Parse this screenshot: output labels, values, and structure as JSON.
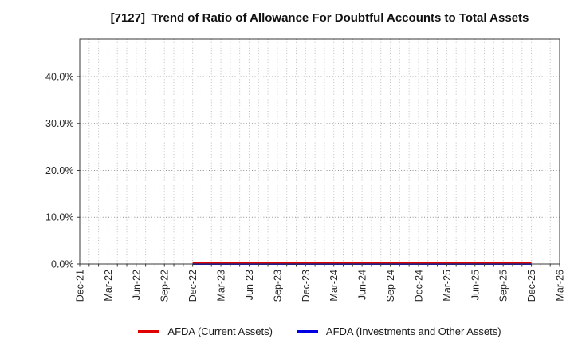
{
  "chart_data": {
    "type": "line",
    "title": "[7127]  Trend of Ratio of Allowance For Doubtful Accounts to Total Assets",
    "xlabel": "",
    "ylabel": "",
    "y_unit": "%",
    "ylim": [
      0,
      48
    ],
    "x_range_months": [
      0,
      51
    ],
    "grid": {
      "style": "dotted",
      "vertical_every_months": 1,
      "horizontal_every_pct": 10
    },
    "legend_position": "bottom-center",
    "x_ticks": [
      {
        "month": 0,
        "label": "Dec-21"
      },
      {
        "month": 3,
        "label": "Mar-22"
      },
      {
        "month": 6,
        "label": "Jun-22"
      },
      {
        "month": 9,
        "label": "Sep-22"
      },
      {
        "month": 12,
        "label": "Dec-22"
      },
      {
        "month": 15,
        "label": "Mar-23"
      },
      {
        "month": 18,
        "label": "Jun-23"
      },
      {
        "month": 21,
        "label": "Sep-23"
      },
      {
        "month": 24,
        "label": "Dec-23"
      },
      {
        "month": 27,
        "label": "Mar-24"
      },
      {
        "month": 30,
        "label": "Jun-24"
      },
      {
        "month": 33,
        "label": "Sep-24"
      },
      {
        "month": 36,
        "label": "Dec-24"
      },
      {
        "month": 39,
        "label": "Mar-25"
      },
      {
        "month": 42,
        "label": "Jun-25"
      },
      {
        "month": 45,
        "label": "Sep-25"
      },
      {
        "month": 48,
        "label": "Dec-25"
      },
      {
        "month": 51,
        "label": "Mar-26"
      }
    ],
    "y_ticks": [
      {
        "value": 0,
        "label": "0.0%"
      },
      {
        "value": 10,
        "label": "10.0%"
      },
      {
        "value": 20,
        "label": "20.0%"
      },
      {
        "value": 30,
        "label": "30.0%"
      },
      {
        "value": 40,
        "label": "40.0%"
      }
    ],
    "series": [
      {
        "name": "AFDA (Current Assets)",
        "color": "#e00000",
        "x_months": [
          12,
          15,
          18,
          21,
          24,
          27,
          30,
          33,
          36,
          39,
          42,
          45,
          48
        ],
        "x_labels": [
          "Dec-22",
          "Mar-23",
          "Jun-23",
          "Sep-23",
          "Dec-23",
          "Mar-24",
          "Jun-24",
          "Sep-24",
          "Dec-24",
          "Mar-25",
          "Jun-25",
          "Sep-25",
          "Dec-25"
        ],
        "values_pct": [
          0.3,
          0.3,
          0.3,
          0.3,
          0.3,
          0.3,
          0.3,
          0.3,
          0.3,
          0.3,
          0.3,
          0.3,
          0.3
        ]
      },
      {
        "name": "AFDA (Investments and Other Assets)",
        "color": "#0000e0",
        "x_months": [
          12,
          15,
          18,
          21,
          24,
          27,
          30,
          33,
          36,
          39,
          42,
          45,
          48
        ],
        "x_labels": [
          "Dec-22",
          "Mar-23",
          "Jun-23",
          "Sep-23",
          "Dec-23",
          "Mar-24",
          "Jun-24",
          "Sep-24",
          "Dec-24",
          "Mar-25",
          "Jun-25",
          "Sep-25",
          "Dec-25"
        ],
        "values_pct": [
          0.0,
          0.0,
          0.0,
          0.0,
          0.0,
          0.0,
          0.0,
          0.0,
          0.0,
          0.0,
          0.0,
          0.0,
          0.0
        ]
      }
    ]
  }
}
